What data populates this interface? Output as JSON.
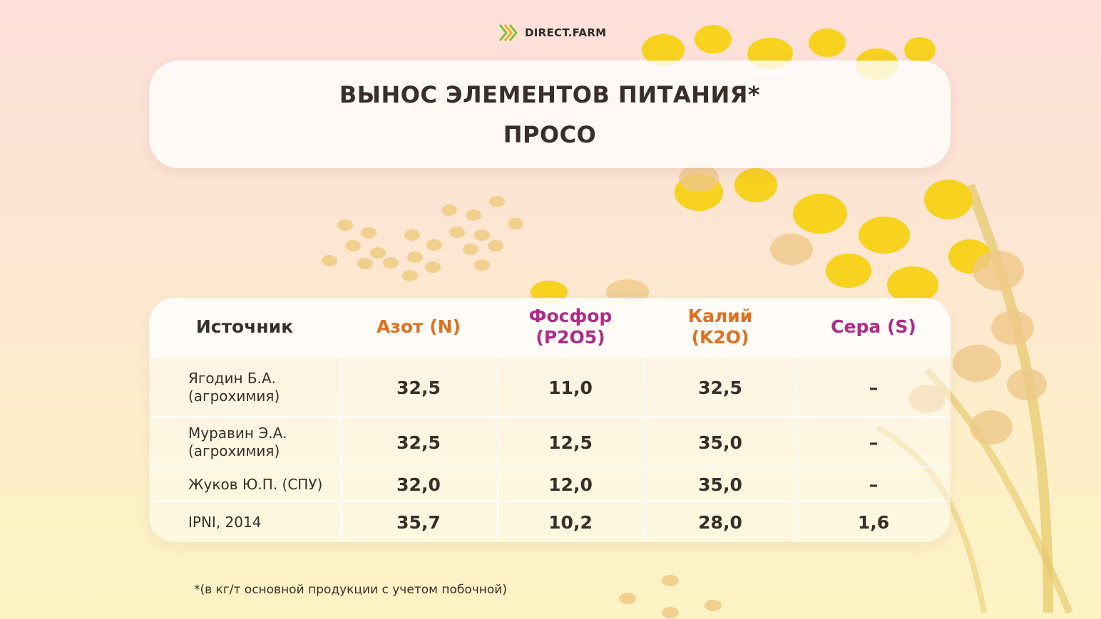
{
  "brand": {
    "logo_text": "DIRECT.FARM",
    "logo_color": "#7cc23a"
  },
  "title": {
    "line1": "ВЫНОС ЭЛЕМЕНТОВ ПИТАНИЯ*",
    "line2": "ПРОСО"
  },
  "table": {
    "headers": [
      {
        "label": "Источник",
        "color": "#3a2e2a"
      },
      {
        "label": "Азот (N)",
        "color": "#e0701f"
      },
      {
        "label": "Фосфор\n(P2O5)",
        "color": "#b02a8a"
      },
      {
        "label": "Калий\n(K2O)",
        "color": "#e0701f"
      },
      {
        "label": "Сера (S)",
        "color": "#b02a8a"
      }
    ],
    "rows": [
      {
        "source": "Ягодин Б.А.\n(агрохимия)",
        "n": "32,5",
        "p": "11,0",
        "k": "32,5",
        "s": "–"
      },
      {
        "source": "Муравин Э.А.\n(агрохимия)",
        "n": "32,5",
        "p": "12,5",
        "k": "35,0",
        "s": "–"
      },
      {
        "source": "Жуков Ю.П. (СПУ)",
        "n": "32,0",
        "p": "12,0",
        "k": "35,0",
        "s": "–"
      },
      {
        "source": "IPNI, 2014",
        "n": "35,7",
        "p": "10,2",
        "k": "28,0",
        "s": "1,6"
      }
    ]
  },
  "footnote": "*(в кг/т основной продукции с учетом побочной)"
}
